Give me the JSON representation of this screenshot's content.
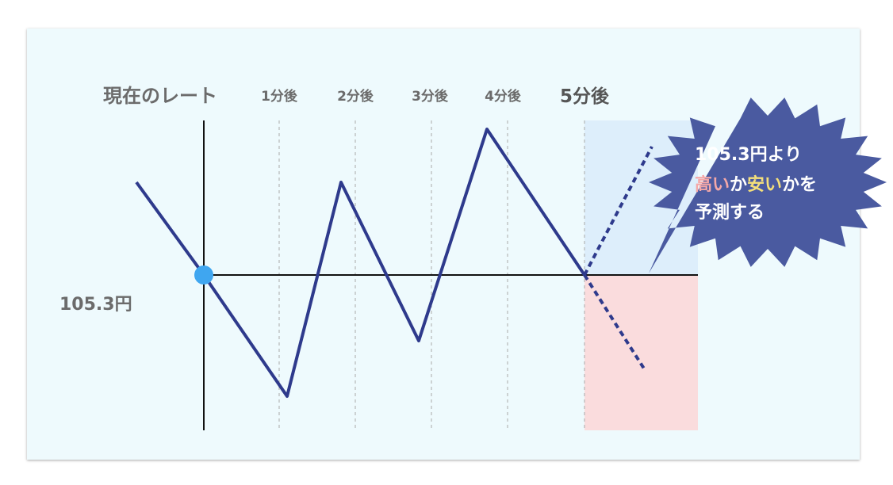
{
  "labels": {
    "current_rate": "現在のレート",
    "t1": "1分後",
    "t2": "2分後",
    "t3": "3分後",
    "t4": "4分後",
    "t5": "5分後",
    "price": "105.3円"
  },
  "callout": {
    "line1": "105.3円より",
    "high": "高い",
    "ka1": "か",
    "low": "安い",
    "ka2": "かを",
    "line3": "予測する"
  },
  "colors": {
    "line": "#2e3a8c",
    "up_zone": "#ddeefb",
    "down_zone": "#fadcdd",
    "marker": "#3fa6f0",
    "callout": "#4a5aa0",
    "high_text": "#f4a8a8",
    "low_text": "#f5e07a"
  }
}
